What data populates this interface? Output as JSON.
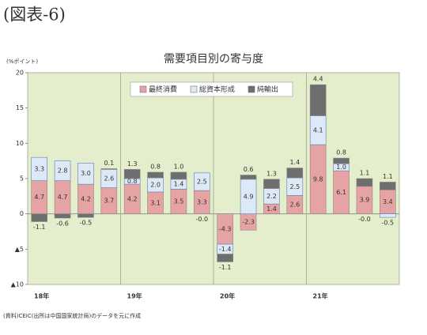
{
  "figure_label": "(図表-6)",
  "source_note": "(資料)CEIC(出所は中国国家統計局)のデータを元に作成",
  "chart_data": {
    "type": "stacked_bar",
    "title": "需要項目別の寄与度",
    "y_axis_label": "(%ポイント)",
    "categories": [
      "18年",
      null,
      null,
      null,
      "19年",
      null,
      null,
      null,
      "20年",
      null,
      null,
      null,
      "21年",
      null,
      null,
      null
    ],
    "series": [
      {
        "name": "最終消費",
        "color": "#e6a3a3",
        "values": [
          4.7,
          4.7,
          4.2,
          3.7,
          4.2,
          3.1,
          3.5,
          3.3,
          -4.3,
          -2.3,
          1.4,
          2.6,
          9.8,
          6.1,
          3.9,
          3.4
        ]
      },
      {
        "name": "総資本形成",
        "color": "#dde9f6",
        "values": [
          3.3,
          2.8,
          3.0,
          2.6,
          0.8,
          2.0,
          1.4,
          2.5,
          -1.4,
          4.9,
          2.2,
          2.5,
          4.1,
          1.0,
          -0.0,
          -0.5
        ],
        "value_labels": [
          "3.3",
          "2.8",
          "3.0",
          "2.6",
          "0.8",
          "2.0",
          "1.4",
          "2.5",
          "-1.4",
          "4.9",
          "2.2",
          "2.5",
          "4.1",
          "1.0",
          "-0.0",
          "-0.5"
        ]
      },
      {
        "name": "純輸出",
        "color": "#6e6e6e",
        "values": [
          -1.1,
          -0.6,
          -0.5,
          0.1,
          1.3,
          0.8,
          1.0,
          -0.0,
          -1.1,
          0.6,
          1.3,
          1.4,
          4.4,
          0.8,
          1.1,
          1.1
        ],
        "value_labels": [
          "-1.1",
          "-0.6",
          "-0.5",
          "0.1",
          "1.3",
          "0.8",
          "1.0",
          "-0.0",
          "-1.1",
          "0.6",
          "1.3",
          "1.4",
          "4.4",
          "0.8",
          "1.1",
          "1.1"
        ]
      }
    ],
    "ylim": [
      -10,
      20
    ],
    "yticks": [
      {
        "value": -10,
        "label": "▲10"
      },
      {
        "value": -5,
        "label": "▲5"
      },
      0,
      5,
      10,
      15,
      20
    ],
    "legend": "top"
  }
}
